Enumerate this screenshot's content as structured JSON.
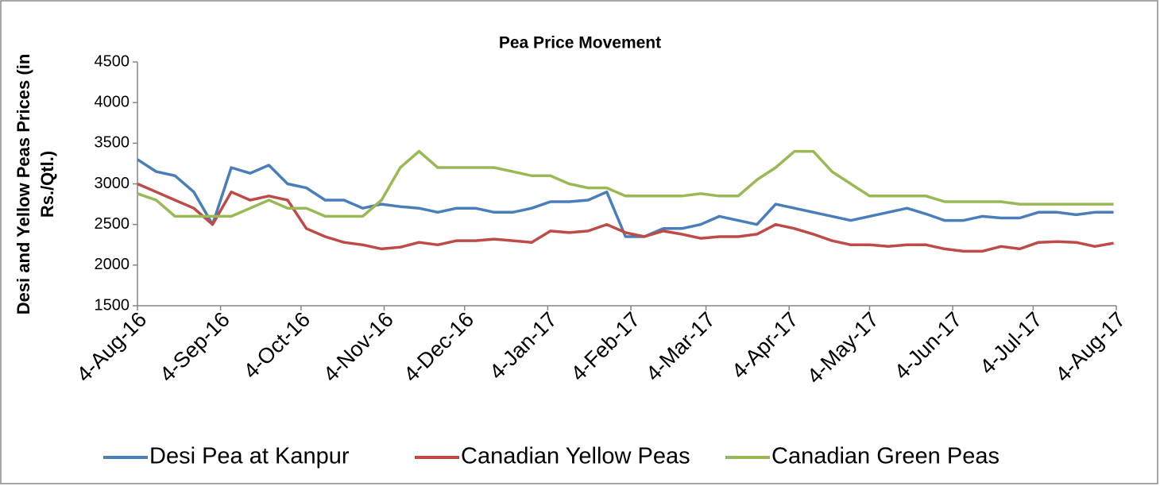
{
  "chart_data": {
    "type": "line",
    "title": "Pea Price Movement",
    "y_label": "Desi and Yellow Peas Prices (in Rs./Qtl.)",
    "legend": "bottom",
    "grid": false,
    "x": [
      "2016-08-04",
      "2016-08-11",
      "2016-08-18",
      "2016-08-25",
      "2016-09-01",
      "2016-09-08",
      "2016-09-15",
      "2016-09-22",
      "2016-09-29",
      "2016-10-06",
      "2016-10-13",
      "2016-10-20",
      "2016-10-27",
      "2016-11-03",
      "2016-11-10",
      "2016-11-17",
      "2016-11-24",
      "2016-12-01",
      "2016-12-08",
      "2016-12-15",
      "2016-12-22",
      "2016-12-29",
      "2017-01-05",
      "2017-01-12",
      "2017-01-19",
      "2017-01-26",
      "2017-02-02",
      "2017-02-09",
      "2017-02-16",
      "2017-02-23",
      "2017-03-02",
      "2017-03-09",
      "2017-03-16",
      "2017-03-23",
      "2017-03-30",
      "2017-04-06",
      "2017-04-13",
      "2017-04-20",
      "2017-04-27",
      "2017-05-04",
      "2017-05-11",
      "2017-05-18",
      "2017-05-25",
      "2017-06-01",
      "2017-06-08",
      "2017-06-15",
      "2017-06-22",
      "2017-06-29",
      "2017-07-06",
      "2017-07-13",
      "2017-07-20",
      "2017-07-27",
      "2017-08-03"
    ],
    "series": [
      {
        "name": "Desi Pea at Kanpur",
        "color": "#4a7ebb",
        "values": [
          3300,
          3150,
          3100,
          2900,
          2500,
          3200,
          3130,
          3230,
          3000,
          2950,
          2800,
          2800,
          2700,
          2750,
          2720,
          2700,
          2650,
          2700,
          2700,
          2650,
          2650,
          2700,
          2780,
          2780,
          2800,
          2900,
          2350,
          2350,
          2450,
          2450,
          2500,
          2600,
          2550,
          2500,
          2750,
          2700,
          2650,
          2600,
          2550,
          2600,
          2650,
          2700,
          2630,
          2550,
          2550,
          2600,
          2580,
          2580,
          2650,
          2650,
          2620,
          2650,
          2650
        ]
      },
      {
        "name": "Canadian Yellow Peas",
        "color": "#be4b48",
        "values": [
          3000,
          2900,
          2800,
          2700,
          2500,
          2900,
          2800,
          2850,
          2800,
          2450,
          2350,
          2280,
          2250,
          2200,
          2220,
          2280,
          2250,
          2300,
          2300,
          2320,
          2300,
          2280,
          2420,
          2400,
          2420,
          2500,
          2400,
          2350,
          2420,
          2380,
          2330,
          2350,
          2350,
          2380,
          2500,
          2450,
          2380,
          2300,
          2250,
          2250,
          2230,
          2250,
          2250,
          2200,
          2170,
          2170,
          2230,
          2200,
          2280,
          2290,
          2280,
          2230,
          2270
        ]
      },
      {
        "name": "Canadian Green Peas",
        "color": "#98b954",
        "values": [
          2880,
          2800,
          2600,
          2600,
          2600,
          2600,
          2700,
          2800,
          2700,
          2700,
          2600,
          2600,
          2600,
          2800,
          3200,
          3400,
          3200,
          3200,
          3200,
          3200,
          3150,
          3100,
          3100,
          3000,
          2950,
          2950,
          2850,
          2850,
          2850,
          2850,
          2880,
          2850,
          2850,
          3050,
          3200,
          3400,
          3400,
          3150,
          3000,
          2850,
          2850,
          2850,
          2850,
          2780,
          2780,
          2780,
          2780,
          2750,
          2750,
          2750,
          2750,
          2750,
          2750
        ]
      }
    ],
    "xlim": [
      "2016-08-04",
      "2017-08-04"
    ],
    "xticks": [
      {
        "value": "2016-08-04",
        "label": "4-Aug-16"
      },
      {
        "value": "2016-09-04",
        "label": "4-Sep-16"
      },
      {
        "value": "2016-10-04",
        "label": "4-Oct-16"
      },
      {
        "value": "2016-11-04",
        "label": "4-Nov-16"
      },
      {
        "value": "2016-12-04",
        "label": "4-Dec-16"
      },
      {
        "value": "2017-01-04",
        "label": "4-Jan-17"
      },
      {
        "value": "2017-02-04",
        "label": "4-Feb-17"
      },
      {
        "value": "2017-03-04",
        "label": "4-Mar-17"
      },
      {
        "value": "2017-04-04",
        "label": "4-Apr-17"
      },
      {
        "value": "2017-05-04",
        "label": "4-May-17"
      },
      {
        "value": "2017-06-04",
        "label": "4-Jun-17"
      },
      {
        "value": "2017-07-04",
        "label": "4-Jul-17"
      },
      {
        "value": "2017-08-04",
        "label": "4-Aug-17"
      }
    ],
    "ylim": [
      1500,
      4500
    ],
    "yticks": [
      1500,
      2000,
      2500,
      3000,
      3500,
      4000,
      4500
    ]
  }
}
